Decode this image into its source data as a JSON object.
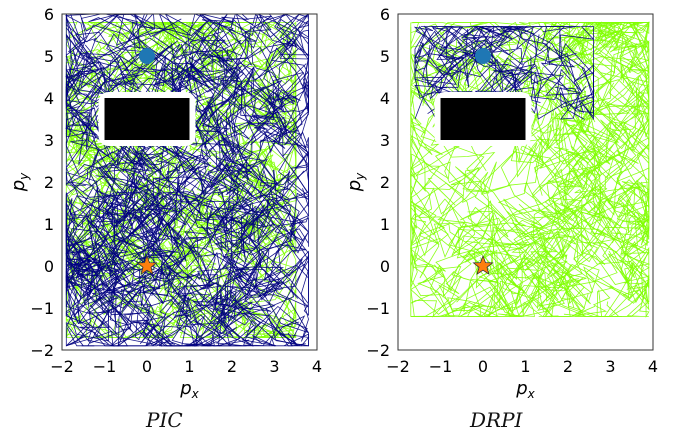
{
  "chart_data": [
    {
      "type": "line",
      "title": "PIC",
      "xlabel": "p_x",
      "ylabel": "p_y",
      "xlim": [
        -2,
        4
      ],
      "ylim": [
        -2,
        6
      ],
      "xticks": [
        "−2",
        "−1",
        "0",
        "1",
        "2",
        "3",
        "4"
      ],
      "yticks": [
        "−2",
        "−1",
        "0",
        "1",
        "2",
        "3",
        "4",
        "5",
        "6"
      ],
      "grid": false,
      "obstacle": {
        "x0": -1,
        "x1": 1,
        "y0": 3,
        "y1": 4,
        "color": "#000000"
      },
      "start": {
        "x": 0,
        "y": 0,
        "marker": "star",
        "color": "#ff7f0e"
      },
      "goal": {
        "x": 0,
        "y": 5,
        "marker": "circle",
        "color": "#1f77b4"
      },
      "series": [
        {
          "color": "#7fff00",
          "region": {
            "x": [
              -1.9,
              3.5
            ],
            "y": [
              -1.7,
              5.8
            ]
          }
        },
        {
          "color": "#000080",
          "region": {
            "x": [
              -1.9,
              3.8
            ],
            "y": [
              -1.9,
              6.0
            ]
          }
        }
      ]
    },
    {
      "type": "line",
      "title": "DRPI",
      "xlabel": "p_x",
      "ylabel": "p_y",
      "xlim": [
        -2,
        4
      ],
      "ylim": [
        -2,
        6
      ],
      "xticks": [
        "−2",
        "−1",
        "0",
        "1",
        "2",
        "3",
        "4"
      ],
      "yticks": [
        "−2",
        "−1",
        "0",
        "1",
        "2",
        "3",
        "4",
        "5",
        "6"
      ],
      "grid": false,
      "obstacle": {
        "x0": -1,
        "x1": 1,
        "y0": 3,
        "y1": 4,
        "color": "#000000"
      },
      "start": {
        "x": 0,
        "y": 0,
        "marker": "star",
        "color": "#ff7f0e"
      },
      "goal": {
        "x": 0,
        "y": 5,
        "marker": "circle",
        "color": "#1f77b4"
      },
      "series": [
        {
          "color": "#7fff00",
          "region": {
            "x": [
              -1.7,
              3.9
            ],
            "y": [
              -1.2,
              5.8
            ]
          }
        },
        {
          "color": "#000080",
          "region": {
            "x": [
              -1.6,
              2.6
            ],
            "y": [
              3.5,
              5.7
            ]
          }
        }
      ]
    }
  ],
  "captions": {
    "left": "PIC",
    "right": "DRPI"
  }
}
